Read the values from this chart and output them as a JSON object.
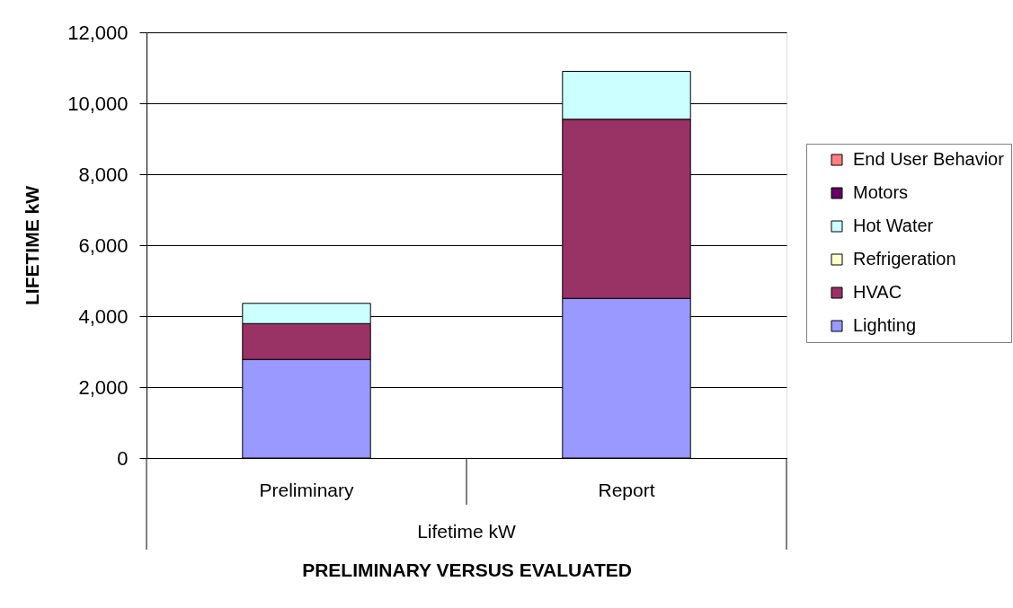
{
  "chart_data": {
    "type": "bar",
    "stacked": true,
    "categories": [
      "Preliminary",
      "Report"
    ],
    "series": [
      {
        "name": "Lighting",
        "color": "#9999ff",
        "values": [
          2780,
          4500
        ]
      },
      {
        "name": "HVAC",
        "color": "#993366",
        "values": [
          1010,
          5050
        ]
      },
      {
        "name": "Refrigeration",
        "color": "#ffffcc",
        "values": [
          null,
          null
        ]
      },
      {
        "name": "Hot Water",
        "color": "#ccffff",
        "values": [
          570,
          1350
        ]
      },
      {
        "name": "Motors",
        "color": "#660066",
        "values": [
          null,
          null
        ]
      },
      {
        "name": "End User Behavior",
        "color": "#ff8080",
        "values": [
          null,
          null
        ]
      }
    ],
    "ylim": [
      0,
      12000
    ],
    "yticks": [
      0,
      {
        "value": 2000,
        "label": "2,000"
      },
      {
        "value": 4000,
        "label": "4,000"
      },
      {
        "value": 6000,
        "label": "6,000"
      },
      {
        "value": 8000,
        "label": "8,000"
      },
      {
        "value": 10000,
        "label": "10,000"
      },
      {
        "value": 12000,
        "label": "12,000"
      }
    ],
    "ylabel": "LIFETIME kW",
    "xlabel": "PRELIMINARY VERSUS EVALUATED",
    "annotations": [
      "Lifetime kW"
    ],
    "grid": "y",
    "legend": "right"
  }
}
